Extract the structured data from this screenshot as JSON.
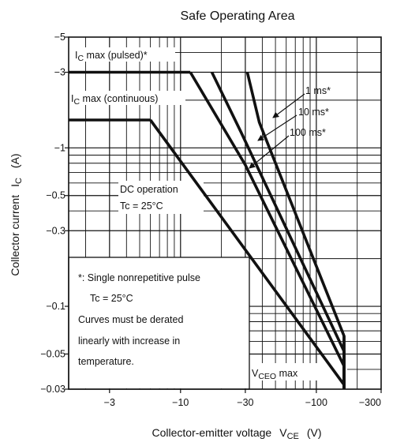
{
  "chart_data": {
    "type": "line",
    "title": "Safe Operating Area",
    "xlabel": {
      "main": "Collector-emitter voltage",
      "symbol": "V",
      "subscript": "CE",
      "unit": "(V)"
    },
    "ylabel": {
      "main": "Collector current",
      "symbol": "I",
      "subscript": "C",
      "unit": "(A)"
    },
    "x_scale": "log",
    "y_scale": "log",
    "xlim": [
      -1.5,
      -300
    ],
    "ylim": [
      -0.03,
      -5
    ],
    "x_ticks": [
      {
        "value": -3,
        "label": "−3"
      },
      {
        "value": -10,
        "label": "−10"
      },
      {
        "value": -30,
        "label": "−30"
      },
      {
        "value": -100,
        "label": "−100"
      },
      {
        "value": -300,
        "label": "−300"
      }
    ],
    "y_ticks": [
      {
        "value": -5,
        "label": "−5"
      },
      {
        "value": -3,
        "label": "−3"
      },
      {
        "value": -1,
        "label": "−1"
      },
      {
        "value": -0.5,
        "label": "−0.5"
      },
      {
        "value": -0.3,
        "label": "−0.3"
      },
      {
        "value": -0.1,
        "label": "−0.1"
      },
      {
        "value": -0.05,
        "label": "−0.05"
      },
      {
        "value": -0.03,
        "label": "−0.03"
      }
    ],
    "grid": true,
    "series": [
      {
        "name": "IC max (pulsed)*",
        "x": [
          -1.5,
          -11.8
        ],
        "y": [
          -3,
          -3
        ]
      },
      {
        "name": "IC max (continuous)",
        "x": [
          -1.5,
          -6
        ],
        "y": [
          -1.5,
          -1.5
        ]
      },
      {
        "name": "1 ms*",
        "x": [
          -31,
          -38,
          -160,
          -160
        ],
        "y": [
          -3,
          -1.45,
          -0.065,
          -0.03
        ]
      },
      {
        "name": "10 ms*",
        "x": [
          -17,
          -28,
          -160,
          -160
        ],
        "y": [
          -3,
          -1.25,
          -0.052,
          -0.03
        ]
      },
      {
        "name": "100 ms*",
        "x": [
          -11.8,
          -30,
          -160,
          -160
        ],
        "y": [
          -3,
          -0.78,
          -0.042,
          -0.03
        ]
      },
      {
        "name": "DC operation",
        "x": [
          -6,
          -160,
          -160
        ],
        "y": [
          -1.5,
          -0.032,
          -0.03
        ]
      },
      {
        "name": "VCEO max",
        "x": [
          -160,
          -160
        ],
        "y": [
          -0.065,
          -0.03
        ]
      }
    ],
    "annotations": {
      "pulsed": {
        "main": "I",
        "sub": "C",
        "rest": " max (pulsed)*"
      },
      "continuous": {
        "main": "I",
        "sub": "C",
        "rest": " max (continuous)"
      },
      "t1ms": "1 ms*",
      "t10ms": "10 ms*",
      "t100ms": "100 ms*",
      "dc_line1": "DC operation",
      "dc_line2": "Tc = 25°C",
      "vceo": {
        "main": "V",
        "sub": "CEO",
        "rest": " max"
      },
      "note": [
        "*: Single nonrepetitive pulse",
        "Tc = 25°C",
        "Curves must be derated",
        "linearly with increase in",
        "temperature."
      ]
    }
  }
}
